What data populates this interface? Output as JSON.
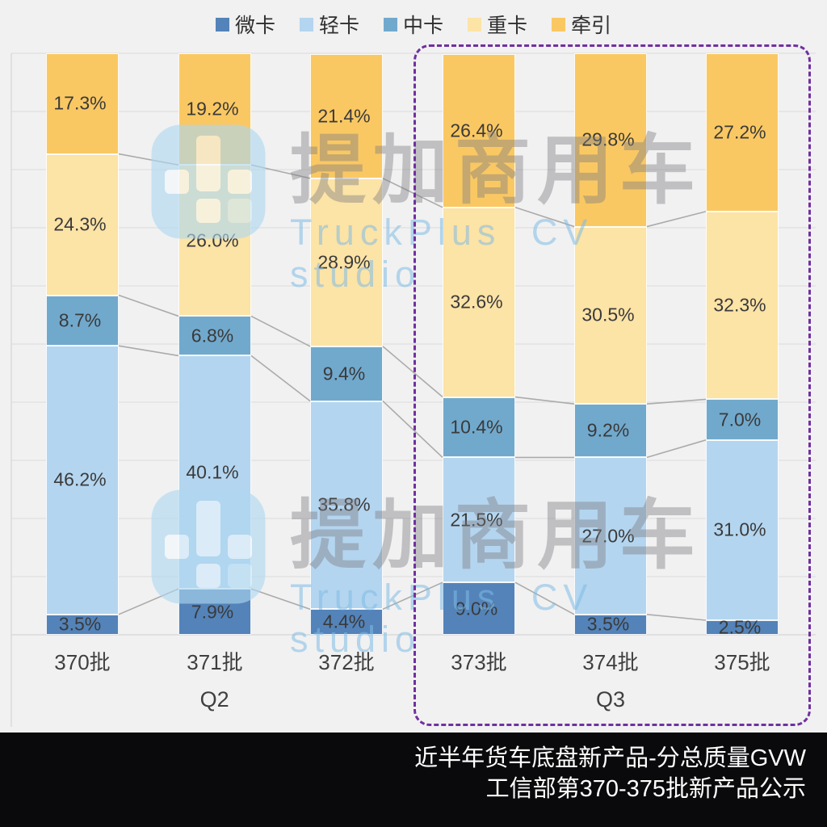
{
  "chart_data": {
    "type": "bar",
    "subtype": "stacked-100-percent",
    "categories": [
      "370批",
      "371批",
      "372批",
      "373批",
      "374批",
      "375批"
    ],
    "series": [
      {
        "name": "微卡",
        "key": "micro-truck",
        "color": "#5383b9",
        "values": [
          3.5,
          7.9,
          4.4,
          9.0,
          3.5,
          2.5
        ]
      },
      {
        "name": "轻卡",
        "key": "light-truck",
        "color": "#b4d5ef",
        "values": [
          46.2,
          40.1,
          35.8,
          21.5,
          27.0,
          31.0
        ]
      },
      {
        "name": "中卡",
        "key": "medium-truck",
        "color": "#71a9cd",
        "values": [
          8.7,
          6.8,
          9.4,
          10.4,
          9.2,
          7.0
        ]
      },
      {
        "name": "重卡",
        "key": "heavy-truck",
        "color": "#fce3a6",
        "values": [
          24.3,
          26.0,
          28.9,
          32.6,
          30.5,
          32.3
        ]
      },
      {
        "name": "牵引",
        "key": "tractor",
        "color": "#fac863",
        "values": [
          17.3,
          19.2,
          21.4,
          26.4,
          29.8,
          27.2
        ]
      }
    ],
    "value_suffix": "%",
    "ylim": [
      0,
      100
    ],
    "gridline_step": 10,
    "grid": true,
    "legend_position": "top",
    "groups": [
      {
        "label": "Q2",
        "category_indexes": [
          0,
          1,
          2
        ]
      },
      {
        "label": "Q3",
        "category_indexes": [
          3,
          4,
          5
        ],
        "highlighted": true
      }
    ],
    "highlight_box_color": "#7030a0",
    "connector_line_color": "#ababab"
  },
  "watermark": {
    "title": "提加商用车",
    "subtitle": "TruckPlus CV studio"
  },
  "footer": {
    "title_line1": "近半年货车底盘新产品-分总质量GVW",
    "title_line2": "工信部第370-375批新产品公示"
  }
}
